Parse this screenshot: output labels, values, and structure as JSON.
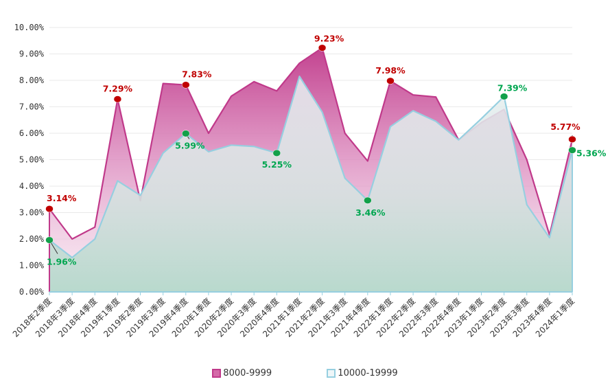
{
  "chart_data": {
    "type": "area",
    "title": "",
    "xlabel": "",
    "ylabel": "",
    "ylim": [
      0,
      10
    ],
    "yticks": [
      0,
      1,
      2,
      3,
      4,
      5,
      6,
      7,
      8,
      9,
      10
    ],
    "ytick_format_suffix": "%",
    "categories": [
      "2018年2季度",
      "2018年3季度",
      "2018年4季度",
      "2019年1季度",
      "2019年2季度",
      "2019年3季度",
      "2019年4季度",
      "2020年1季度",
      "2020年2季度",
      "2020年3季度",
      "2020年4季度",
      "2021年1季度",
      "2021年2季度",
      "2021年3季度",
      "2021年4季度",
      "2022年1季度",
      "2022年2季度",
      "2022年3季度",
      "2022年4季度",
      "2023年1季度",
      "2023年2季度",
      "2023年3季度",
      "2023年4季度",
      "2024年1季度"
    ],
    "series": [
      {
        "name": "8000-9999",
        "color": "#c0398a",
        "values": [
          3.14,
          2.0,
          2.45,
          7.29,
          3.45,
          7.88,
          7.83,
          6.0,
          7.4,
          7.95,
          7.6,
          8.65,
          9.23,
          6.0,
          4.95,
          7.98,
          7.45,
          7.37,
          5.75,
          6.4,
          6.9,
          5.0,
          2.15,
          5.77
        ],
        "labels": [
          {
            "index": 0,
            "text": "3.14%"
          },
          {
            "index": 3,
            "text": "7.29%"
          },
          {
            "index": 6,
            "text": "7.83%"
          },
          {
            "index": 12,
            "text": "9.23%"
          },
          {
            "index": 15,
            "text": "7.98%"
          },
          {
            "index": 23,
            "text": "5.77%"
          }
        ]
      },
      {
        "name": "10000-19999",
        "color": "#96cfe0",
        "values": [
          1.96,
          1.3,
          2.0,
          4.2,
          3.65,
          5.25,
          5.99,
          5.3,
          5.55,
          5.5,
          5.25,
          8.15,
          6.8,
          4.3,
          3.46,
          6.25,
          6.85,
          6.45,
          5.75,
          6.55,
          7.39,
          3.3,
          2.05,
          5.36
        ],
        "labels": [
          {
            "index": 0,
            "text": "1.96%"
          },
          {
            "index": 6,
            "text": "5.99%"
          },
          {
            "index": 10,
            "text": "5.25%"
          },
          {
            "index": 14,
            "text": "3.46%"
          },
          {
            "index": 20,
            "text": "7.39%"
          },
          {
            "index": 23,
            "text": "5.36%"
          }
        ]
      }
    ],
    "legend": [
      "8000-9999",
      "10000-19999"
    ],
    "legend_position": "bottom",
    "grid": true
  },
  "colors": {
    "red_marker": "#c00000",
    "green_marker": "#12a04a",
    "red_label": "#c00000",
    "green_label": "#00a650"
  }
}
